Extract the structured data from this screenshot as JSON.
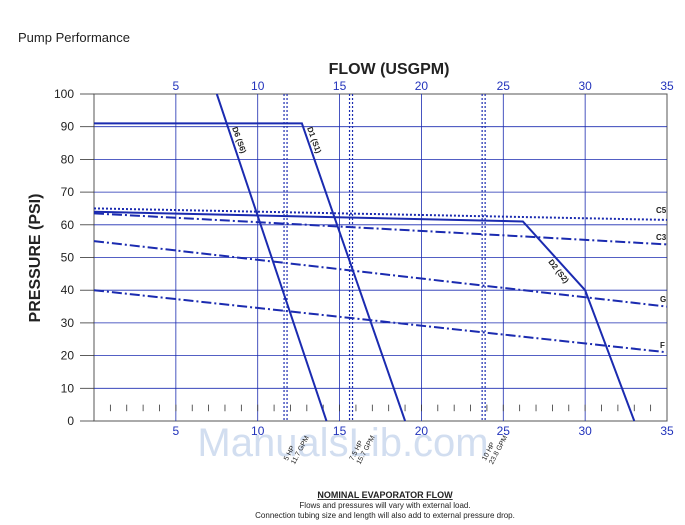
{
  "page": {
    "heading": "Pump Performance"
  },
  "watermark": "ManualsLib.com",
  "chart_data": {
    "type": "line",
    "title": "FLOW (USGPM)",
    "xlabel": "NOMINAL EVAPORATOR FLOW",
    "ylabel": "PRESSURE (PSI)",
    "xlim": [
      0,
      35
    ],
    "ylim": [
      0,
      100
    ],
    "x_ticks": [
      "5",
      "10",
      "15",
      "20",
      "25",
      "30",
      "35"
    ],
    "y_ticks": [
      "0",
      "10",
      "20",
      "30",
      "40",
      "50",
      "60",
      "70",
      "80",
      "90",
      "100"
    ],
    "x_tick_values": [
      5,
      10,
      15,
      20,
      25,
      30,
      35
    ],
    "y_tick_values": [
      0,
      10,
      20,
      30,
      40,
      50,
      60,
      70,
      80,
      90,
      100
    ],
    "grid": true,
    "series": [
      {
        "name": "C5",
        "style": "dotted",
        "x": [
          0,
          35
        ],
        "y": [
          65,
          61.5
        ]
      },
      {
        "name": "C3",
        "style": "dashdot",
        "x": [
          0,
          26,
          35
        ],
        "y": [
          63.5,
          56.5,
          54
        ]
      },
      {
        "name": "G",
        "style": "dashdot",
        "x": [
          0,
          35
        ],
        "y": [
          55,
          35
        ]
      },
      {
        "name": "F",
        "style": "dashdot",
        "x": [
          0,
          35
        ],
        "y": [
          40,
          21
        ]
      },
      {
        "name": "D1 (S1)",
        "style": "solid",
        "x": [
          0,
          12.7,
          19
        ],
        "y": [
          91,
          91,
          0
        ]
      },
      {
        "name": "D6 (S6)",
        "style": "solid",
        "x": [
          7.5,
          14.2
        ],
        "y": [
          100,
          0
        ]
      },
      {
        "name": "D2 (S2)",
        "style": "solid",
        "x": [
          0,
          26.2,
          30,
          33
        ],
        "y": [
          64,
          61,
          40,
          0
        ]
      }
    ],
    "reference_lines": [
      {
        "label_lines": [
          "5 HP",
          "11.7 GPM"
        ],
        "x": 11.7
      },
      {
        "label_lines": [
          "7.5 HP",
          "15.7 GPM"
        ],
        "x": 15.7
      },
      {
        "label_lines": [
          "10 HP",
          "23.8 GPM"
        ],
        "x": 23.8
      }
    ],
    "footer_notes": [
      "Flows and pressures will vary with external load.",
      "Connection tubing size and length will also add to external pressure drop."
    ],
    "colors": {
      "curve": "#1b2bb0",
      "grid": "#1b2bb0",
      "frame": "#555555"
    }
  }
}
